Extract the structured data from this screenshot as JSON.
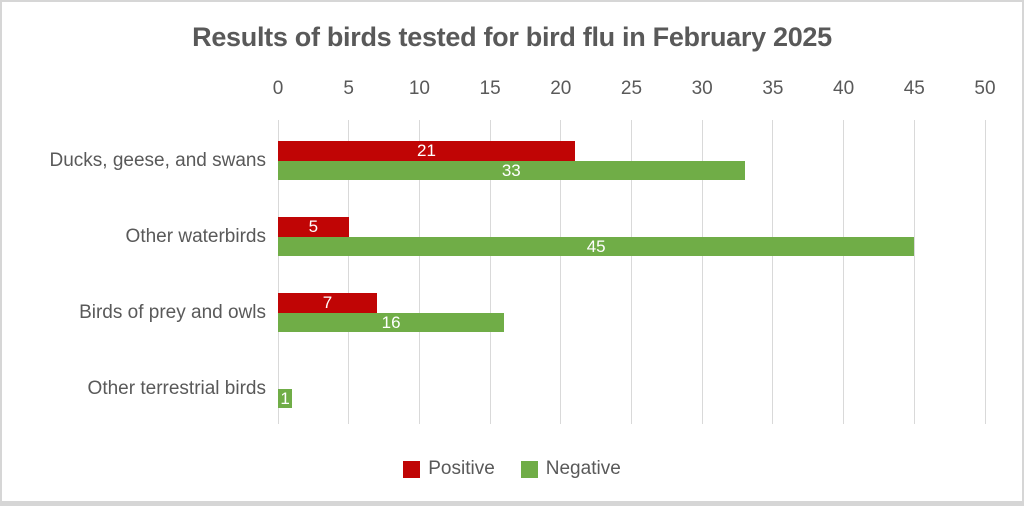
{
  "title": "Results of birds tested for bird flu in February 2025",
  "chart_data": {
    "type": "bar",
    "orientation": "horizontal",
    "title": "Results of birds tested for bird flu in February 2025",
    "categories": [
      "Ducks, geese, and swans",
      "Other waterbirds",
      "Birds of prey and owls",
      "Other terrestrial birds"
    ],
    "series": [
      {
        "name": "Positive",
        "color": "#c00505",
        "values": [
          21,
          5,
          7,
          0
        ]
      },
      {
        "name": "Negative",
        "color": "#70ad47",
        "values": [
          33,
          45,
          16,
          1
        ]
      }
    ],
    "xlim": [
      0,
      50
    ],
    "tick_step": 5,
    "grid": true,
    "legend_position": "bottom",
    "value_labels": "inside-center",
    "value_label_color": "#ffffff"
  },
  "style": {
    "text_color": "#595959",
    "gridline_color": "#d9d9d9",
    "background_color": "#ffffff",
    "border_color": "#d6d6d6"
  }
}
